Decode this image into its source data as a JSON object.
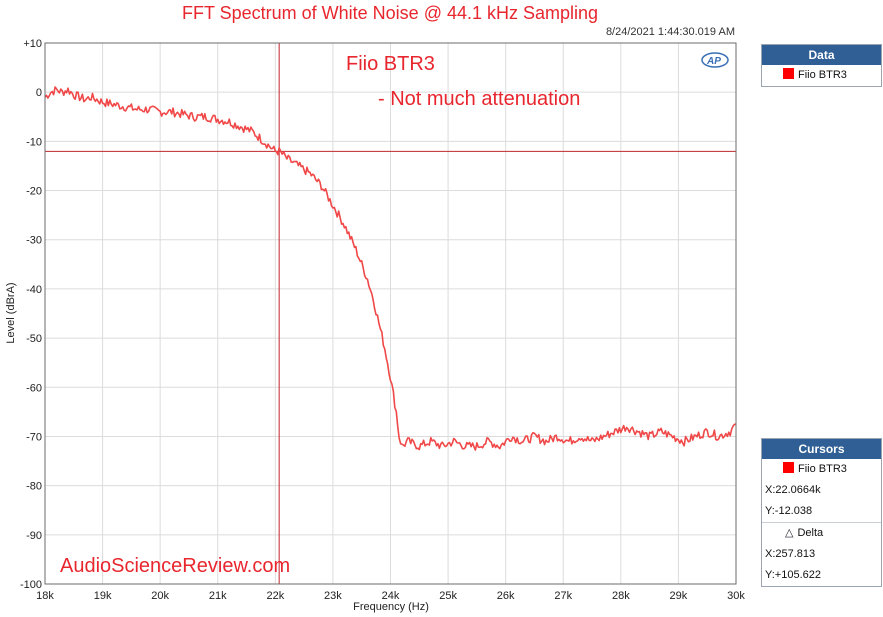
{
  "title": "FFT Spectrum of White Noise @ 44.1 kHz Sampling",
  "timestamp": "8/24/2021 1:44:30.019 AM",
  "ap_logo": "AP",
  "annotations": {
    "line1": "Fiio BTR3",
    "line2": "- Not much attenuation",
    "watermark": "AudioScienceReview.com"
  },
  "data_panel": {
    "header": "Data",
    "series_label": "Fiio BTR3"
  },
  "cursors_panel": {
    "header": "Cursors",
    "series_label": "Fiio BTR3",
    "x": "X:22.0664k",
    "y": "Y:-12.038",
    "delta_label": "Delta",
    "delta_x": "X:257.813",
    "delta_y": "Y:+105.622"
  },
  "colors": {
    "trace": "#f04848",
    "cursor": "#c0262c",
    "title": "#e8262e",
    "panel_header": "#2f5f94"
  },
  "chart_data": {
    "type": "line",
    "title": "FFT Spectrum of White Noise @ 44.1 kHz Sampling",
    "xlabel": "Frequency (Hz)",
    "ylabel": "Level (dBrA)",
    "xlim": [
      18000,
      30000
    ],
    "ylim": [
      -100,
      10
    ],
    "x_ticks": [
      18000,
      19000,
      20000,
      21000,
      22000,
      23000,
      24000,
      25000,
      26000,
      27000,
      28000,
      29000,
      30000
    ],
    "x_tick_labels": [
      "18k",
      "19k",
      "20k",
      "21k",
      "22k",
      "23k",
      "24k",
      "25k",
      "26k",
      "27k",
      "28k",
      "29k",
      "30k"
    ],
    "y_ticks": [
      10,
      0,
      -10,
      -20,
      -30,
      -40,
      -50,
      -60,
      -70,
      -80,
      -90,
      -100
    ],
    "y_tick_labels": [
      "+10",
      "0",
      "-10",
      "-20",
      "-30",
      "-40",
      "-50",
      "-60",
      "-70",
      "-80",
      "-90",
      "-100"
    ],
    "grid": true,
    "cursor": {
      "x": 22066.4,
      "y": -12.038
    },
    "series": [
      {
        "name": "Fiio BTR3",
        "x": [
          18000,
          18100,
          18200,
          18300,
          18400,
          18500,
          18600,
          18700,
          18800,
          18900,
          19000,
          19200,
          19400,
          19600,
          19800,
          20000,
          20200,
          20400,
          20600,
          20800,
          21000,
          21200,
          21400,
          21600,
          21800,
          22000,
          22066,
          22200,
          22400,
          22600,
          22800,
          23000,
          23200,
          23400,
          23600,
          23700,
          23800,
          23900,
          24000,
          24100,
          24150,
          24200,
          24300,
          24500,
          24700,
          24900,
          25100,
          25300,
          25500,
          25700,
          25900,
          26100,
          26300,
          26500,
          26700,
          26900,
          27100,
          27300,
          27500,
          27700,
          27900,
          28100,
          28300,
          28500,
          28700,
          28900,
          29100,
          29300,
          29500,
          29700,
          29900,
          30000
        ],
        "y": [
          -1,
          0,
          0.5,
          0,
          0.5,
          -0.5,
          -1,
          -1.5,
          -1,
          -1.5,
          -2,
          -2.5,
          -3,
          -3.5,
          -3.5,
          -4,
          -4,
          -4.5,
          -5,
          -5,
          -5.5,
          -6,
          -7,
          -8,
          -10,
          -12,
          -12,
          -13.5,
          -15,
          -16.5,
          -19,
          -23,
          -27,
          -32,
          -38,
          -42,
          -47,
          -52,
          -58,
          -65,
          -70,
          -72,
          -71,
          -72,
          -71,
          -72,
          -71,
          -72,
          -72,
          -71,
          -72,
          -70,
          -71,
          -70,
          -71,
          -70,
          -71,
          -70,
          -71,
          -70,
          -69,
          -68,
          -69,
          -70,
          -69,
          -70,
          -71,
          -70,
          -69,
          -70,
          -69,
          -67.5
        ]
      }
    ]
  }
}
